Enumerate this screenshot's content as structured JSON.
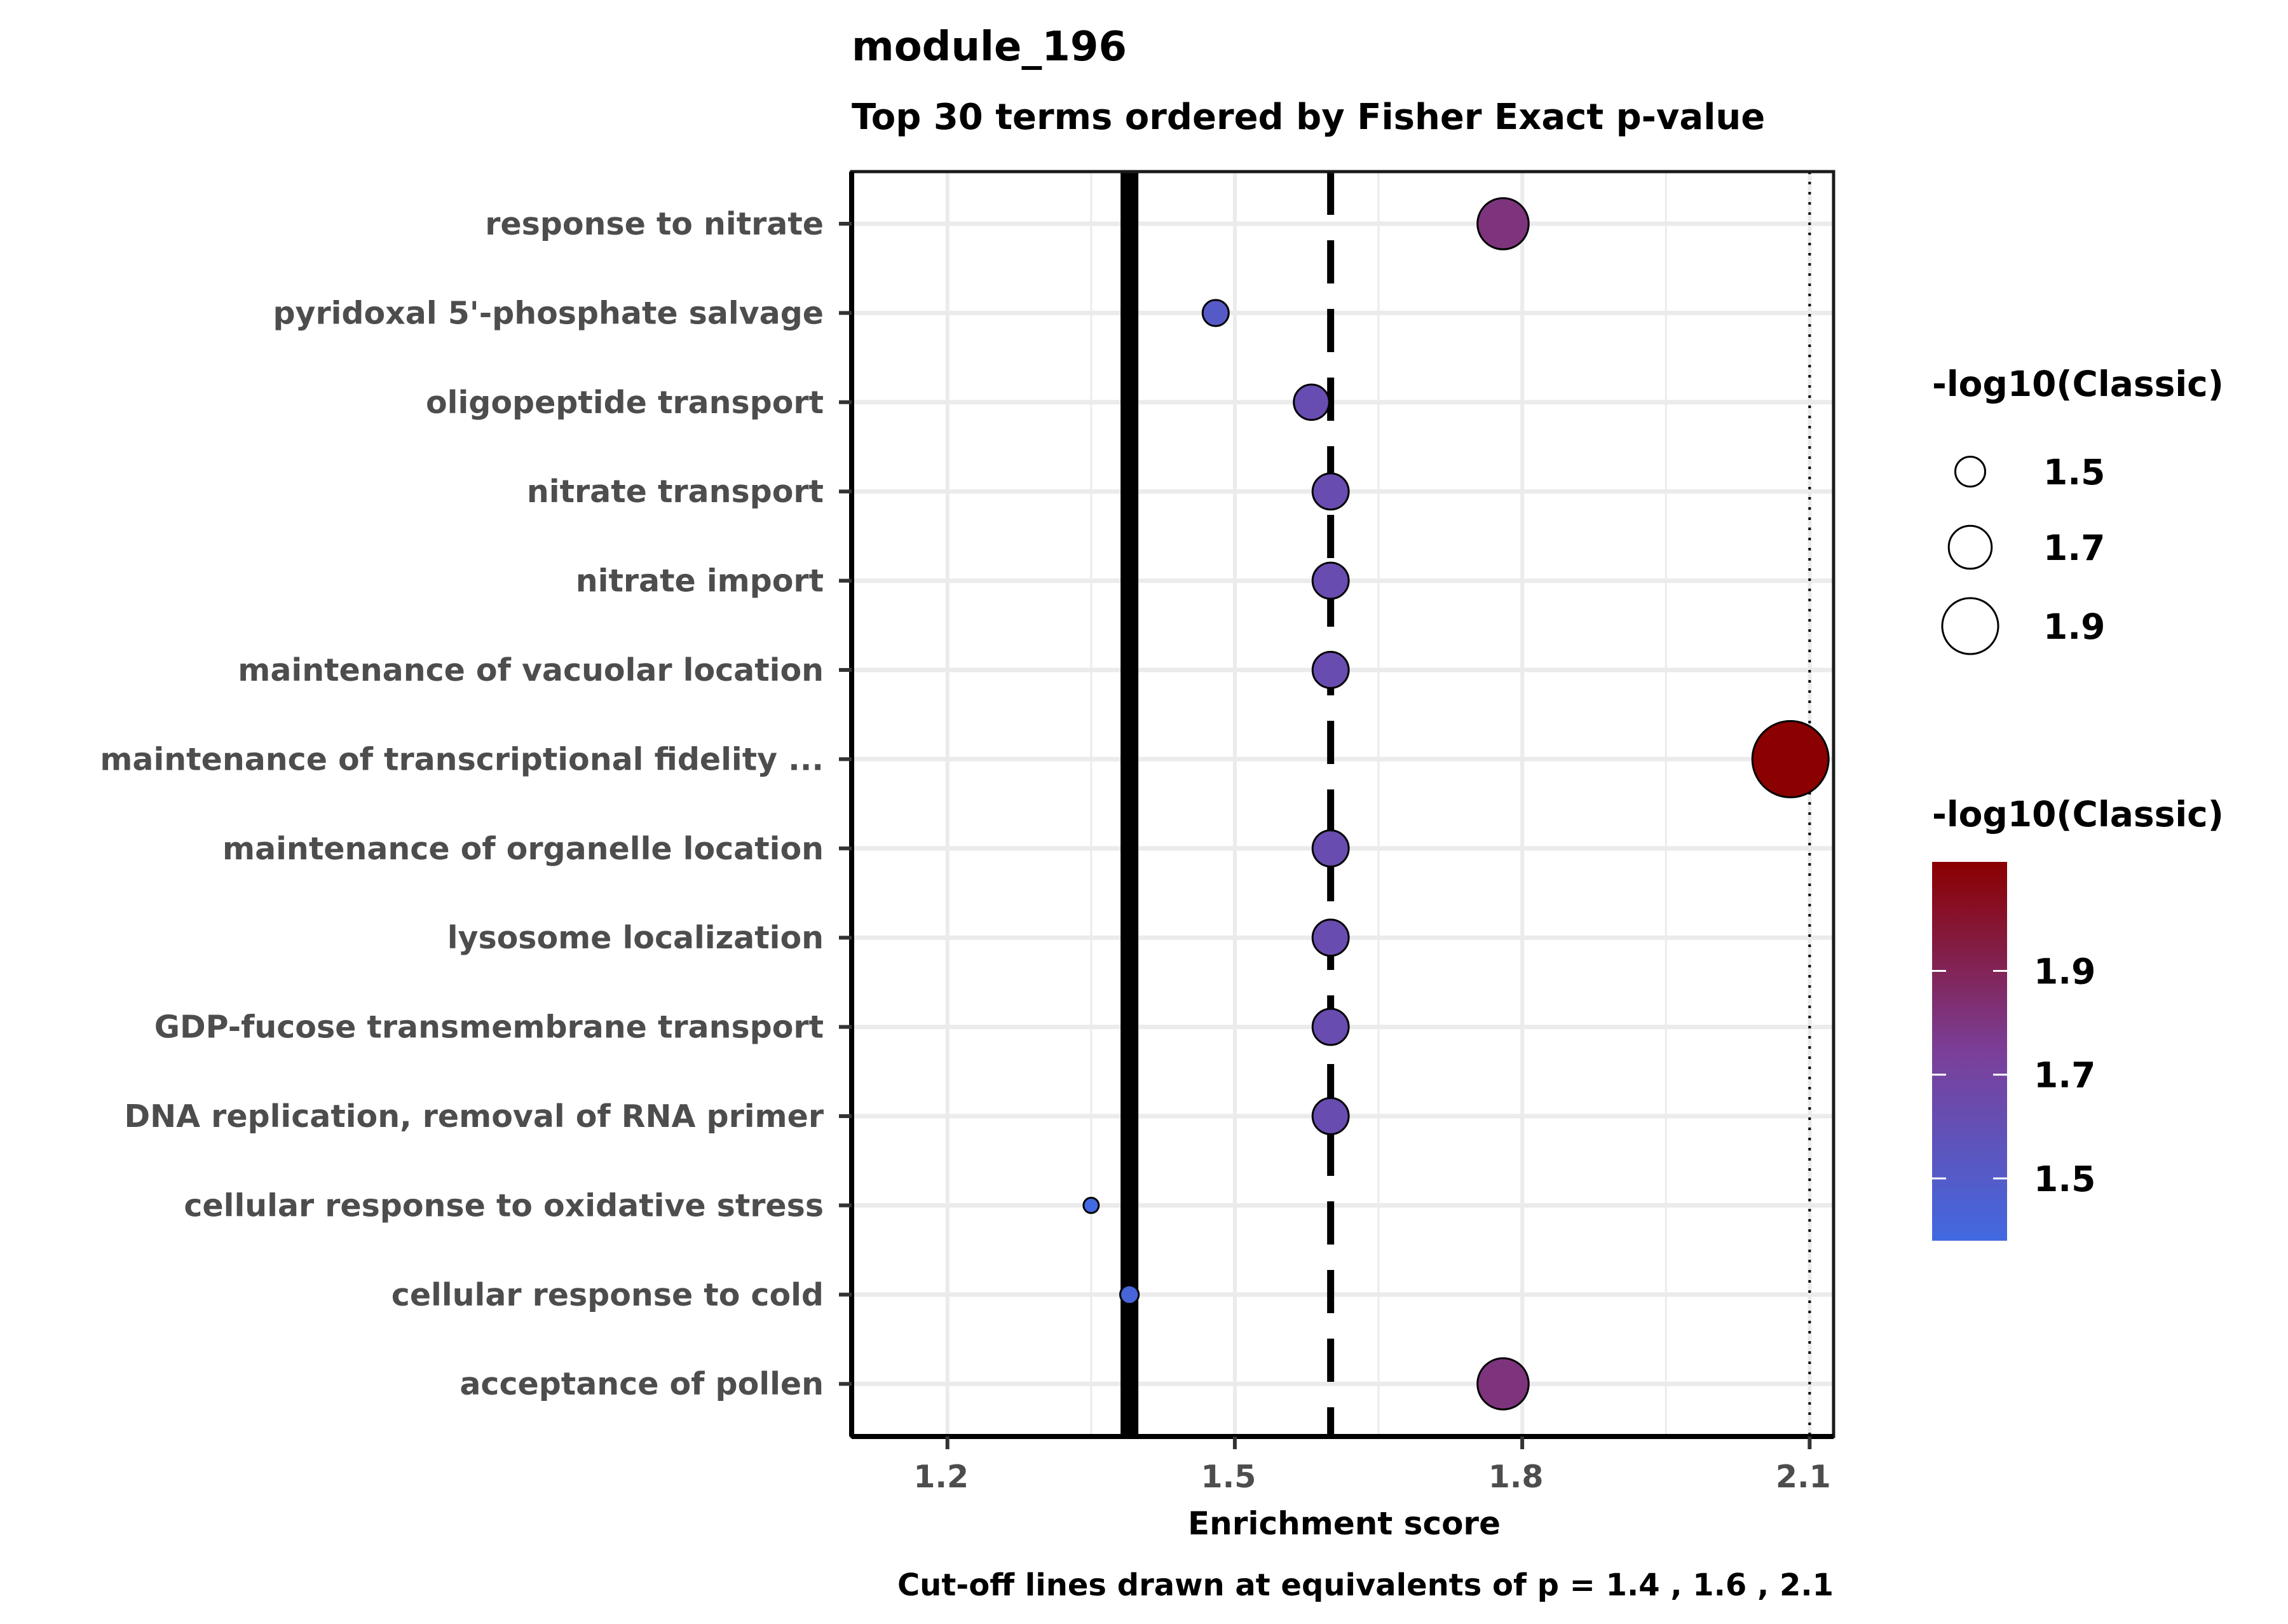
{
  "chart_data": {
    "type": "scatter",
    "title": "module_196",
    "subtitle": "Top 30 terms ordered by Fisher Exact p-value",
    "xlabel": "Enrichment score",
    "caption": "Cut-off lines drawn at equivalents of p = 1.4 , 1.6 , 2.1",
    "xlim": [
      1.1,
      2.125
    ],
    "xticks": [
      {
        "value": 1.2,
        "label": "1.2"
      },
      {
        "value": 1.5,
        "label": "1.5"
      },
      {
        "value": 1.8,
        "label": "1.8"
      },
      {
        "value": 2.1,
        "label": "2.1"
      }
    ],
    "grid": true,
    "cutoff_lines": [
      {
        "value": 1.39,
        "style": "solid"
      },
      {
        "value": 1.6,
        "style": "dashed"
      },
      {
        "value": 2.1,
        "style": "dotted"
      }
    ],
    "categories": [
      "response to nitrate",
      "pyridoxal 5'-phosphate salvage",
      "oligopeptide transport",
      "nitrate transport",
      "nitrate import",
      "maintenance of vacuolar location",
      "maintenance of transcriptional fidelity ...",
      "maintenance of organelle location",
      "lysosome localization",
      "GDP-fucose transmembrane transport",
      "DNA replication, removal of RNA primer",
      "cellular response to oxidative stress",
      "cellular response to cold",
      "acceptance of pollen"
    ],
    "points": [
      {
        "term": "response to nitrate",
        "x": 1.78,
        "value": 1.81
      },
      {
        "term": "pyridoxal 5'-phosphate salvage",
        "x": 1.48,
        "value": 1.51
      },
      {
        "term": "oligopeptide transport",
        "x": 1.58,
        "value": 1.62
      },
      {
        "term": "nitrate transport",
        "x": 1.6,
        "value": 1.63
      },
      {
        "term": "nitrate import",
        "x": 1.6,
        "value": 1.63
      },
      {
        "term": "maintenance of vacuolar location",
        "x": 1.6,
        "value": 1.63
      },
      {
        "term": "maintenance of transcriptional fidelity ...",
        "x": 2.08,
        "value": 2.11
      },
      {
        "term": "maintenance of organelle location",
        "x": 1.6,
        "value": 1.63
      },
      {
        "term": "lysosome localization",
        "x": 1.6,
        "value": 1.63
      },
      {
        "term": "GDP-fucose transmembrane transport",
        "x": 1.6,
        "value": 1.63
      },
      {
        "term": "DNA replication, removal of RNA primer",
        "x": 1.6,
        "value": 1.63
      },
      {
        "term": "cellular response to oxidative stress",
        "x": 1.35,
        "value": 1.38
      },
      {
        "term": "cellular response to cold",
        "x": 1.39,
        "value": 1.42
      },
      {
        "term": "acceptance of pollen",
        "x": 1.78,
        "value": 1.81
      }
    ],
    "size_legend": {
      "title": "-log10(Classic)",
      "breaks": [
        1.5,
        1.7,
        1.9
      ],
      "labels": [
        "1.5",
        "1.7",
        "1.9"
      ]
    },
    "color_legend": {
      "title": "-log10(Classic)",
      "range": [
        1.38,
        2.11
      ],
      "breaks": [
        1.5,
        1.7,
        1.9
      ],
      "labels": [
        "1.5",
        "1.7",
        "1.9"
      ],
      "low_color": "#4169e1",
      "mid_color": "#7b3f98",
      "high_color": "#8b0000"
    }
  }
}
